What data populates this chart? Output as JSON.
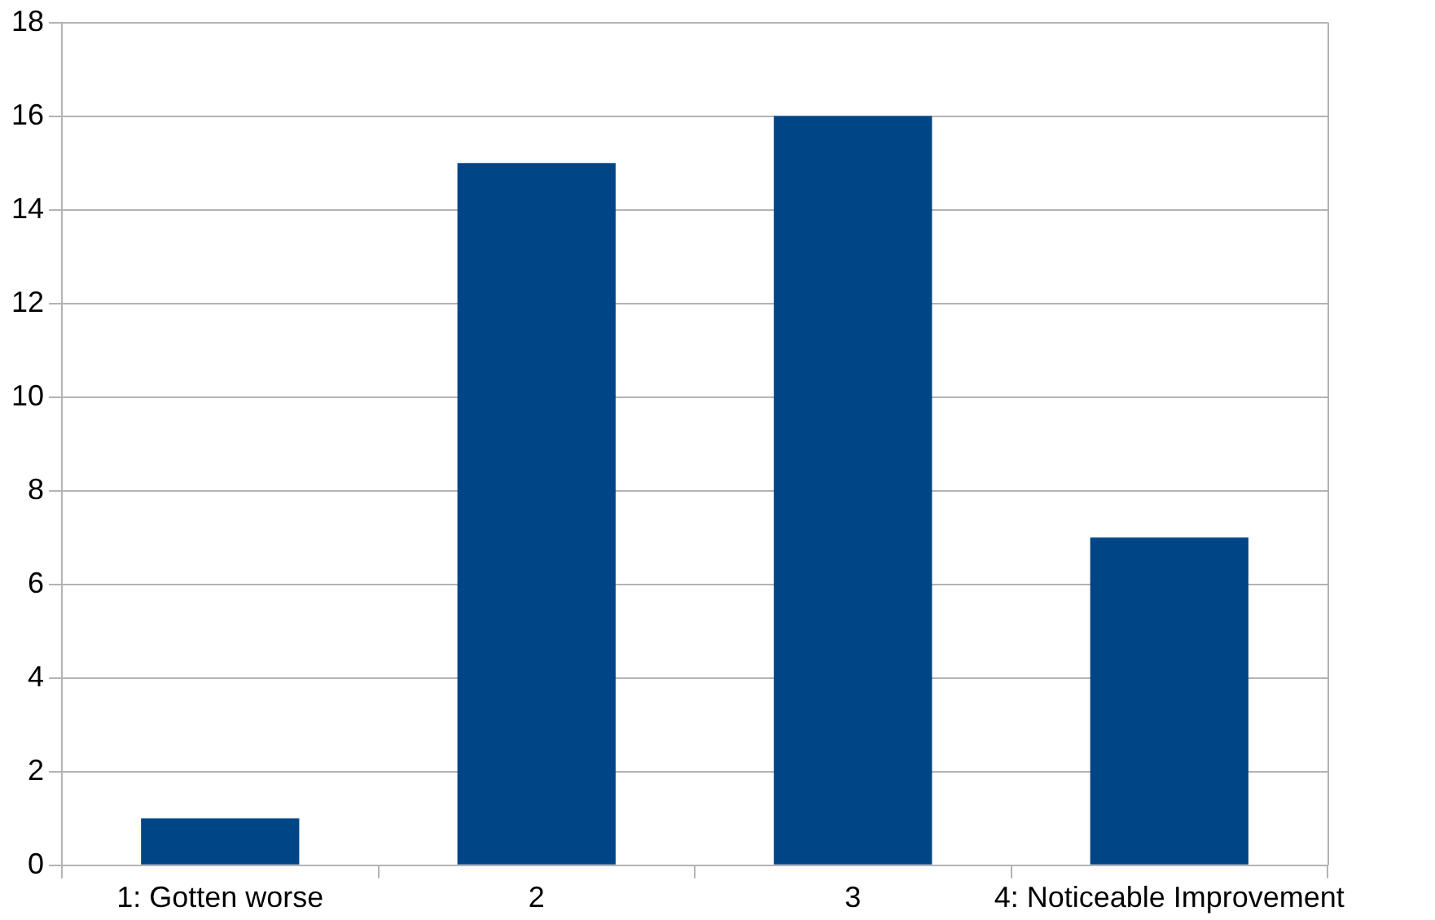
{
  "chart_data": {
    "type": "bar",
    "categories": [
      "1: Gotten worse",
      "2",
      "3",
      "4: Noticeable Improvement"
    ],
    "values": [
      1,
      15,
      16,
      7
    ],
    "color": "#004586",
    "ylim": [
      0,
      18
    ],
    "yticks": [
      0,
      2,
      4,
      6,
      8,
      10,
      12,
      14,
      16,
      18
    ],
    "grid": "y",
    "legend": false
  }
}
